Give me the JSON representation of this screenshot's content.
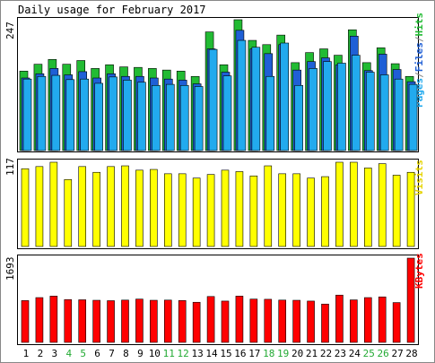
{
  "chart_data": [
    {
      "type": "bar",
      "title": "Daily usage for February 2017",
      "panel": "hits-files-pages",
      "y_axis_label": "247",
      "ylim": [
        0,
        247
      ],
      "legend": {
        "pages": "Pages",
        "files": "Files",
        "hits": "Hits",
        "sep": "/"
      },
      "colors": {
        "hits": "#22bb33",
        "files": "#1f5fd6",
        "pages": "#22aaee"
      },
      "categories": [
        "1",
        "2",
        "3",
        "4",
        "5",
        "6",
        "7",
        "8",
        "9",
        "10",
        "11",
        "12",
        "13",
        "14",
        "15",
        "16",
        "17",
        "18",
        "19",
        "20",
        "21",
        "22",
        "23",
        "24",
        "25",
        "26",
        "27",
        "28"
      ],
      "series": [
        {
          "name": "Hits",
          "values": [
            150,
            163,
            172,
            163,
            170,
            155,
            162,
            158,
            157,
            155,
            152,
            150,
            140,
            224,
            162,
            247,
            208,
            200,
            218,
            166,
            185,
            192,
            180,
            228,
            166,
            194,
            164,
            140
          ]
        },
        {
          "name": "Files",
          "values": [
            137,
            145,
            155,
            143,
            149,
            137,
            145,
            140,
            140,
            137,
            135,
            133,
            126,
            192,
            148,
            227,
            192,
            183,
            200,
            152,
            168,
            175,
            162,
            216,
            151,
            182,
            153,
            130
          ]
        },
        {
          "name": "Pages",
          "values": [
            135,
            140,
            142,
            134,
            135,
            127,
            139,
            133,
            129,
            123,
            125,
            123,
            121,
            191,
            141,
            208,
            195,
            140,
            203,
            123,
            155,
            168,
            165,
            180,
            148,
            143,
            135,
            125
          ]
        }
      ]
    },
    {
      "type": "bar",
      "panel": "visits",
      "y_axis_label": "117",
      "ylim": [
        0,
        117
      ],
      "legend": "Visits",
      "colors": {
        "visits": "#ffff00"
      },
      "categories": [
        "1",
        "2",
        "3",
        "4",
        "5",
        "6",
        "7",
        "8",
        "9",
        "10",
        "11",
        "12",
        "13",
        "14",
        "15",
        "16",
        "17",
        "18",
        "19",
        "20",
        "21",
        "22",
        "23",
        "24",
        "25",
        "26",
        "27",
        "28"
      ],
      "series": [
        {
          "name": "Visits",
          "values": [
            108,
            111,
            117,
            93,
            111,
            103,
            111,
            112,
            106,
            107,
            101,
            101,
            95,
            100,
            106,
            104,
            98,
            112,
            101,
            101,
            95,
            97,
            117,
            117,
            109,
            115,
            99,
            103
          ]
        }
      ]
    },
    {
      "type": "bar",
      "panel": "kbytes",
      "y_axis_label": "1693",
      "ylim": [
        0,
        1693
      ],
      "legend": "KBytes",
      "colors": {
        "kbytes": "#ff0000"
      },
      "categories": [
        "1",
        "2",
        "3",
        "4",
        "5",
        "6",
        "7",
        "8",
        "9",
        "10",
        "11",
        "12",
        "13",
        "14",
        "15",
        "16",
        "17",
        "18",
        "19",
        "20",
        "21",
        "22",
        "23",
        "24",
        "25",
        "26",
        "27",
        "28"
      ],
      "series": [
        {
          "name": "KBytes",
          "values": [
            840,
            900,
            930,
            860,
            856,
            846,
            838,
            850,
            870,
            846,
            850,
            841,
            806,
            922,
            830,
            930,
            870,
            866,
            850,
            846,
            830,
            770,
            950,
            854,
            900,
            914,
            800,
            1693
          ]
        }
      ]
    }
  ],
  "x_axis": {
    "labels": [
      "1",
      "2",
      "3",
      "4",
      "5",
      "6",
      "7",
      "8",
      "9",
      "10",
      "11",
      "12",
      "13",
      "14",
      "15",
      "16",
      "17",
      "18",
      "19",
      "20",
      "21",
      "22",
      "23",
      "24",
      "25",
      "26",
      "27",
      "28"
    ],
    "weekend_days": [
      "4",
      "5",
      "11",
      "12",
      "18",
      "19",
      "25",
      "26"
    ],
    "weekday_color": "#000000",
    "weekend_color": "#22aa33"
  }
}
